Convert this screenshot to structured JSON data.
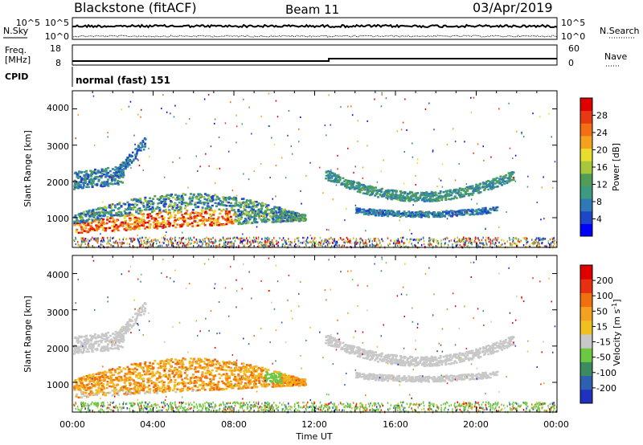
{
  "header": {
    "station": "Blackstone (fitACF)",
    "beam": "Beam 11",
    "date": "03/Apr/2019"
  },
  "summary_panel": {
    "left_labels": {
      "nsky": "N.Sky",
      "freq": "Freq.",
      "freq_unit": "[MHz]",
      "cpid": "CPID"
    },
    "right_labels": {
      "nsearch": "N.Search",
      "nave": "Nave"
    },
    "noise_ticks": {
      "top": "10^5",
      "bottom": "10^0"
    },
    "freq_ticks": [
      "18",
      "8"
    ],
    "nave_ticks": [
      "60",
      "0"
    ],
    "freq_value_mhz": [
      [
        0,
        10.0
      ],
      [
        12.7,
        11.2
      ],
      [
        24,
        11.2
      ]
    ],
    "cpid_text": "normal (fast) 151"
  },
  "chart_data": [
    {
      "type": "heatmap",
      "title": "Power",
      "xlabel": "",
      "ylabel": "Slant Range [km]",
      "xlim_hours": [
        0,
        24
      ],
      "ylim_km": [
        180,
        4500
      ],
      "y_ticks": [
        "1000",
        "2000",
        "3000",
        "4000"
      ],
      "colorbar": {
        "label": "Power [dB]",
        "ticks": [
          "28",
          "24",
          "20",
          "16",
          "12",
          "8",
          "4"
        ],
        "colors": [
          "#0000ff",
          "#1e46c8",
          "#2f79b8",
          "#3b9a7f",
          "#4f9d57",
          "#a8c83c",
          "#e8dc2e",
          "#f4a21e",
          "#f26f16",
          "#e83a12",
          "#e00000"
        ]
      },
      "echo_regions": [
        {
          "name": "morning-upper",
          "t": [
            0.0,
            2.5
          ],
          "r": [
            1800,
            2400
          ],
          "level": 0.35
        },
        {
          "name": "morning-spike",
          "t": [
            2.0,
            3.6
          ],
          "r": [
            2000,
            3000
          ],
          "level": 0.3
        },
        {
          "name": "main-band",
          "t": [
            0.0,
            11.5
          ],
          "r": [
            600,
            1700
          ],
          "level": 0.6
        },
        {
          "name": "evening-arc-upper",
          "t": [
            12.5,
            21.8
          ],
          "r": [
            1500,
            2700
          ],
          "level": 0.3
        },
        {
          "name": "evening-arc-lower",
          "t": [
            14.0,
            21.0
          ],
          "r": [
            1000,
            1300
          ],
          "level": 0.25
        },
        {
          "name": "ground-clutter",
          "t": [
            0.0,
            24.0
          ],
          "r": [
            200,
            500
          ],
          "level": 0.5
        }
      ]
    },
    {
      "type": "heatmap",
      "title": "Velocity",
      "xlabel": "Time UT",
      "ylabel": "Slant Range [km]",
      "xlim_hours": [
        0,
        24
      ],
      "ylim_km": [
        180,
        4500
      ],
      "y_ticks": [
        "1000",
        "2000",
        "3000",
        "4000"
      ],
      "x_ticks": [
        "00:00",
        "04:00",
        "08:00",
        "12:00",
        "16:00",
        "20:00",
        "00:00"
      ],
      "colorbar": {
        "label": "Velocity [m s^-1]",
        "ticks": [
          "200",
          "100",
          "50",
          "15",
          "-15",
          "-50",
          "-100",
          "-200"
        ],
        "colors": [
          "#2030c0",
          "#2f5fb0",
          "#3c8a60",
          "#6cc840",
          "#c8c8c8",
          "#f0c020",
          "#f4a020",
          "#f07010",
          "#e83010",
          "#e00000"
        ]
      }
    }
  ]
}
